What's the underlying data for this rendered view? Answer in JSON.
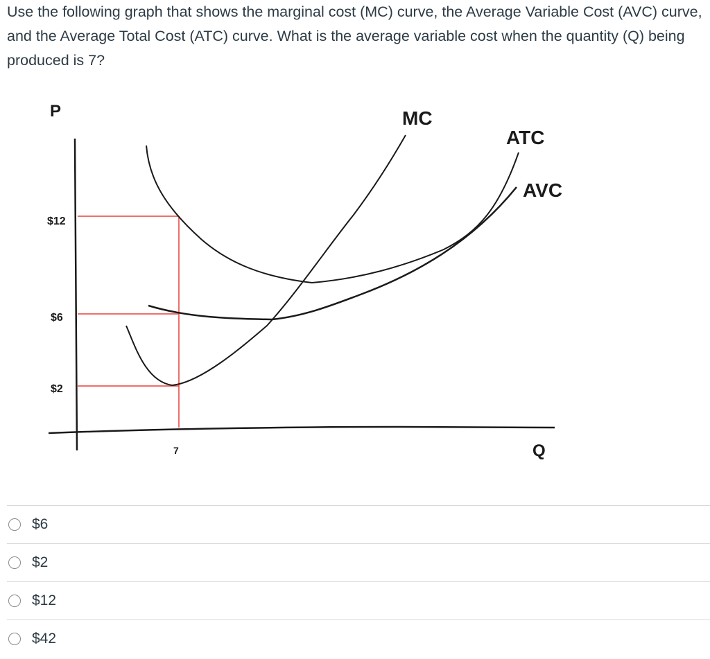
{
  "question": {
    "text": "Use the following graph that shows the marginal cost (MC) curve, the Average Variable Cost (AVC) curve, and the Average Total Cost (ATC) curve. What is the average variable cost when the quantity (Q) being produced is 7?"
  },
  "graph": {
    "y_axis_label": "P",
    "x_axis_label": "Q",
    "y_ticks": [
      "$12",
      "$6",
      "$2"
    ],
    "x_ticks": [
      "7"
    ],
    "curve_labels": {
      "mc": "MC",
      "atc": "ATC",
      "avc": "AVC"
    },
    "colors": {
      "curves": "#1a1a1a",
      "guide_lines": "#e8403a",
      "axis": "#1a1a1a"
    }
  },
  "answers": [
    {
      "label": "$6",
      "selected": false
    },
    {
      "label": "$2",
      "selected": false
    },
    {
      "label": "$12",
      "selected": false
    },
    {
      "label": "$42",
      "selected": false
    }
  ]
}
